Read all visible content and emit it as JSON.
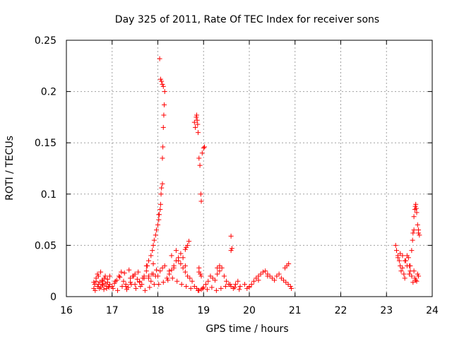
{
  "chart_data": {
    "type": "scatter",
    "title": "Day 325 of 2011, Rate Of TEC Index for receiver sons",
    "xlabel": "GPS time / hours",
    "ylabel": "ROTI / TECUs",
    "xlim": [
      16,
      24
    ],
    "ylim": [
      0,
      0.25
    ],
    "xticks": [
      "16",
      "17",
      "18",
      "19",
      "20",
      "21",
      "22",
      "23",
      "24"
    ],
    "yticks": [
      "0",
      "0.05",
      "0.1",
      "0.15",
      "0.2",
      "0.25"
    ],
    "grid": true,
    "marker": "plus",
    "color": "#ff0000",
    "series": [
      {
        "x": [
          16.6,
          16.62,
          16.65,
          16.68,
          16.7,
          16.73,
          16.75,
          16.78,
          16.8,
          16.83,
          16.85,
          16.88,
          16.9,
          16.93,
          16.95,
          16.6,
          16.65,
          16.7,
          16.75,
          16.8,
          16.85,
          16.9,
          16.95,
          16.63,
          16.72,
          16.82,
          16.92,
          16.68,
          16.78,
          16.88,
          17.0,
          17.05,
          17.1,
          17.15,
          17.2,
          17.25,
          17.3,
          17.35,
          17.4,
          17.45,
          17.5,
          17.55,
          17.6,
          17.65,
          17.7,
          17.75,
          17.8,
          17.85,
          17.9,
          17.95,
          17.02,
          17.12,
          17.22,
          17.32,
          17.42,
          17.52,
          17.62,
          17.72,
          17.82,
          17.92,
          17.07,
          17.17,
          17.27,
          17.37,
          17.47,
          17.57,
          17.67,
          17.77,
          17.87,
          17.97,
          17.3,
          17.4,
          17.5,
          17.6,
          17.7,
          17.8,
          17.9,
          17.75,
          17.8,
          17.85,
          17.88,
          17.9,
          17.92,
          17.95,
          17.97,
          18.0,
          18.02,
          18.03,
          18.05,
          18.06,
          18.07,
          18.08,
          18.1,
          18.1,
          18.11,
          18.12,
          18.13,
          18.14,
          18.15,
          18.12,
          18.1,
          18.08,
          18.06,
          18.04,
          18.02,
          18.0,
          18.05,
          18.1,
          18.15,
          18.2,
          18.25,
          18.3,
          18.35,
          18.4,
          18.45,
          18.5,
          18.55,
          18.6,
          18.65,
          18.7,
          18.75,
          18.02,
          18.12,
          18.22,
          18.32,
          18.42,
          18.52,
          18.62,
          18.72,
          18.3,
          18.4,
          18.5,
          18.55,
          18.6,
          18.62,
          18.65,
          18.68,
          18.6,
          18.45,
          18.35,
          18.25,
          18.8,
          18.82,
          18.84,
          18.85,
          18.86,
          18.87,
          18.88,
          18.9,
          18.92,
          18.94,
          18.95,
          18.97,
          19.0,
          19.02,
          18.9,
          18.95,
          18.9,
          18.93,
          18.8,
          18.85,
          18.9,
          18.95,
          19.0,
          19.05,
          19.1,
          19.15,
          19.2,
          19.25,
          19.3,
          19.35,
          19.4,
          19.45,
          19.5,
          19.55,
          19.6,
          19.65,
          19.7,
          19.75,
          19.8,
          18.88,
          18.98,
          19.08,
          19.18,
          19.28,
          19.38,
          19.48,
          19.58,
          19.68,
          19.78,
          19.3,
          19.35,
          19.6,
          19.62,
          19.6,
          19.9,
          19.95,
          20.0,
          20.05,
          20.1,
          20.15,
          20.2,
          20.25,
          20.3,
          20.35,
          20.4,
          20.45,
          20.5,
          20.55,
          20.6,
          20.65,
          20.7,
          20.75,
          20.8,
          20.85,
          20.9,
          20.92,
          20.78,
          20.82,
          20.86,
          20.4,
          20.2,
          20.0,
          23.2,
          23.22,
          23.25,
          23.28,
          23.3,
          23.32,
          23.35,
          23.38,
          23.4,
          23.42,
          23.45,
          23.48,
          23.5,
          23.52,
          23.55,
          23.57,
          23.58,
          23.6,
          23.6,
          23.62,
          23.63,
          23.64,
          23.65,
          23.66,
          23.68,
          23.7,
          23.7,
          23.72,
          23.6,
          23.55,
          23.5,
          23.45,
          23.4,
          23.35,
          23.3,
          23.25,
          23.62,
          23.66,
          23.7,
          23.68,
          23.64,
          23.58,
          23.52
        ],
        "y": [
          0.008,
          0.012,
          0.015,
          0.01,
          0.02,
          0.014,
          0.009,
          0.016,
          0.011,
          0.018,
          0.013,
          0.01,
          0.014,
          0.009,
          0.012,
          0.014,
          0.018,
          0.012,
          0.024,
          0.015,
          0.02,
          0.017,
          0.02,
          0.006,
          0.008,
          0.007,
          0.01,
          0.022,
          0.012,
          0.008,
          0.01,
          0.013,
          0.016,
          0.02,
          0.024,
          0.015,
          0.012,
          0.009,
          0.018,
          0.02,
          0.022,
          0.017,
          0.014,
          0.012,
          0.02,
          0.025,
          0.018,
          0.015,
          0.022,
          0.02,
          0.008,
          0.006,
          0.01,
          0.007,
          0.012,
          0.008,
          0.01,
          0.006,
          0.009,
          0.012,
          0.015,
          0.019,
          0.023,
          0.026,
          0.02,
          0.024,
          0.018,
          0.03,
          0.022,
          0.026,
          0.01,
          0.014,
          0.012,
          0.015,
          0.018,
          0.02,
          0.032,
          0.03,
          0.035,
          0.04,
          0.045,
          0.05,
          0.055,
          0.06,
          0.065,
          0.07,
          0.075,
          0.08,
          0.085,
          0.09,
          0.1,
          0.106,
          0.11,
          0.135,
          0.146,
          0.165,
          0.177,
          0.187,
          0.2,
          0.205,
          0.207,
          0.21,
          0.212,
          0.232,
          0.08,
          0.02,
          0.025,
          0.028,
          0.03,
          0.018,
          0.022,
          0.026,
          0.03,
          0.035,
          0.038,
          0.032,
          0.028,
          0.024,
          0.02,
          0.018,
          0.015,
          0.012,
          0.014,
          0.016,
          0.018,
          0.015,
          0.012,
          0.01,
          0.008,
          0.04,
          0.045,
          0.042,
          0.038,
          0.046,
          0.048,
          0.05,
          0.054,
          0.03,
          0.035,
          0.028,
          0.025,
          0.17,
          0.165,
          0.175,
          0.177,
          0.172,
          0.168,
          0.16,
          0.135,
          0.128,
          0.1,
          0.093,
          0.14,
          0.145,
          0.146,
          0.024,
          0.02,
          0.028,
          0.022,
          0.01,
          0.008,
          0.006,
          0.007,
          0.009,
          0.012,
          0.015,
          0.02,
          0.018,
          0.016,
          0.022,
          0.025,
          0.028,
          0.02,
          0.015,
          0.012,
          0.01,
          0.008,
          0.012,
          0.015,
          0.01,
          0.006,
          0.008,
          0.007,
          0.009,
          0.006,
          0.008,
          0.01,
          0.012,
          0.009,
          0.007,
          0.028,
          0.03,
          0.045,
          0.047,
          0.059,
          0.012,
          0.008,
          0.01,
          0.012,
          0.015,
          0.018,
          0.02,
          0.022,
          0.024,
          0.025,
          0.022,
          0.02,
          0.018,
          0.016,
          0.02,
          0.022,
          0.018,
          0.016,
          0.014,
          0.012,
          0.01,
          0.008,
          0.028,
          0.03,
          0.032,
          0.02,
          0.016,
          0.009,
          0.05,
          0.045,
          0.04,
          0.035,
          0.03,
          0.025,
          0.028,
          0.022,
          0.018,
          0.035,
          0.04,
          0.038,
          0.03,
          0.025,
          0.045,
          0.055,
          0.062,
          0.065,
          0.078,
          0.085,
          0.088,
          0.09,
          0.086,
          0.082,
          0.07,
          0.065,
          0.062,
          0.06,
          0.025,
          0.02,
          0.022,
          0.03,
          0.035,
          0.04,
          0.042,
          0.038,
          0.018,
          0.015,
          0.02,
          0.022,
          0.016,
          0.014,
          0.03
        ]
      }
    ]
  }
}
